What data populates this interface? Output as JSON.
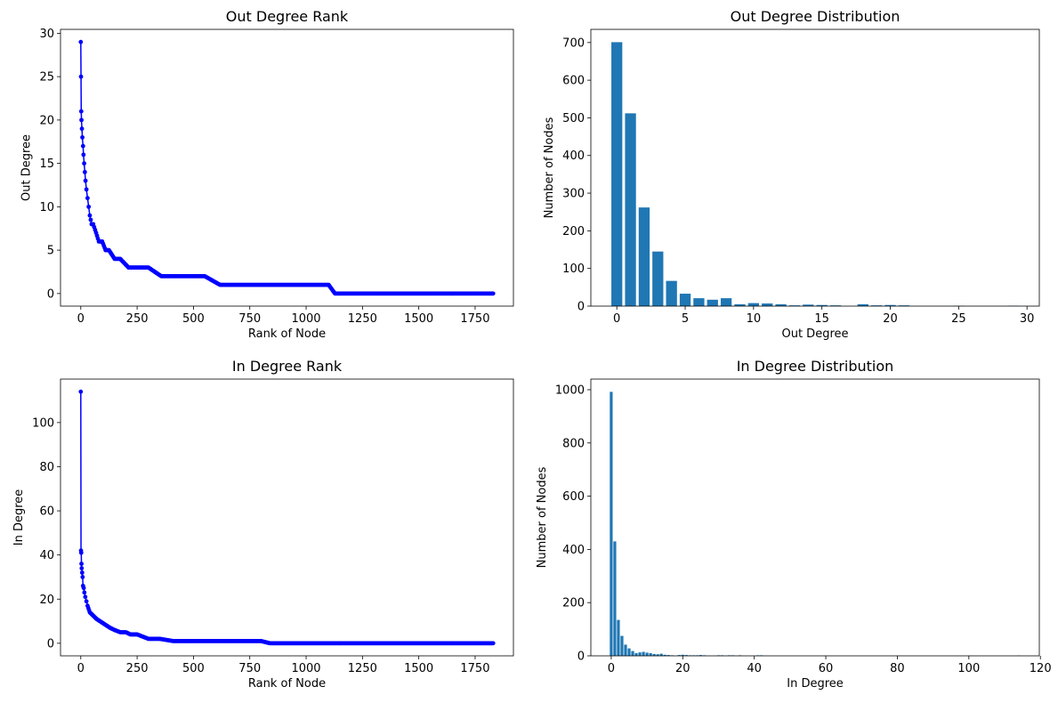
{
  "chart_data": [
    {
      "type": "line",
      "title": "Out Degree Rank",
      "xlabel": "Rank of Node",
      "ylabel": "Out Degree",
      "xlim": [
        -90,
        1920
      ],
      "ylim": [
        -1.45,
        30.45
      ],
      "xticks": [
        0,
        250,
        500,
        750,
        1000,
        1250,
        1500,
        1750
      ],
      "yticks": [
        0,
        5,
        10,
        15,
        20,
        25,
        30
      ],
      "color": "#0000ff",
      "marker": "circle",
      "series": [
        {
          "x": [
            0,
            1,
            2,
            3,
            5,
            7,
            10,
            12,
            15,
            18,
            21,
            25,
            30,
            35,
            40,
            48,
            55,
            68,
            80,
            95,
            110,
            125,
            150,
            175,
            212,
            250,
            300,
            357,
            400,
            450,
            500,
            550,
            618,
            700,
            800,
            900,
            1000,
            1100,
            1128,
            1200,
            1300,
            1400,
            1500,
            1600,
            1700,
            1800,
            1830
          ],
          "y": [
            29,
            25,
            21,
            20,
            19,
            18,
            17,
            16,
            15,
            14,
            13,
            12,
            11,
            10,
            9,
            8,
            8,
            7,
            6,
            6,
            5,
            5,
            4,
            4,
            3,
            3,
            3,
            2,
            2,
            2,
            2,
            2,
            1,
            1,
            1,
            1,
            1,
            1,
            0,
            0,
            0,
            0,
            0,
            0,
            0,
            0,
            0
          ]
        }
      ]
    },
    {
      "type": "bar",
      "title": "Out Degree Distribution",
      "xlabel": "Out Degree",
      "ylabel": "Number of Nodes",
      "xlim": [
        -1.9,
        30.9
      ],
      "ylim": [
        0,
        735
      ],
      "xticks": [
        0,
        5,
        10,
        15,
        20,
        25,
        30
      ],
      "yticks": [
        0,
        100,
        200,
        300,
        400,
        500,
        600,
        700
      ],
      "color": "#1f77b4",
      "x": [
        0,
        1,
        2,
        3,
        4,
        5,
        6,
        7,
        8,
        9,
        10,
        11,
        12,
        13,
        14,
        15,
        16,
        18,
        19,
        20,
        21,
        25,
        29
      ],
      "values": [
        701,
        512,
        262,
        145,
        67,
        33,
        21,
        17,
        21,
        5,
        8,
        7,
        5,
        2,
        4,
        3,
        2,
        5,
        2,
        3,
        2,
        1,
        1
      ]
    },
    {
      "type": "line",
      "title": "In Degree Rank",
      "xlabel": "Rank of Node",
      "ylabel": "In Degree",
      "xlim": [
        -90,
        1920
      ],
      "ylim": [
        -5.7,
        119.7
      ],
      "xticks": [
        0,
        250,
        500,
        750,
        1000,
        1250,
        1500,
        1750
      ],
      "yticks": [
        0,
        20,
        40,
        60,
        80,
        100
      ],
      "color": "#0000ff",
      "marker": "circle",
      "series": [
        {
          "x": [
            0,
            1,
            2,
            3,
            4,
            6,
            8,
            10,
            13,
            16,
            20,
            25,
            30,
            40,
            50,
            60,
            70,
            85,
            100,
            115,
            130,
            150,
            175,
            200,
            220,
            250,
            275,
            300,
            350,
            410,
            450,
            500,
            600,
            700,
            800,
            840,
            900,
            1000,
            1100,
            1200,
            1300,
            1400,
            1500,
            1600,
            1700,
            1800,
            1830
          ],
          "y": [
            114,
            42,
            41,
            36,
            34,
            32,
            30,
            26,
            25,
            23,
            21,
            19,
            17,
            14,
            13,
            12,
            11,
            10,
            9,
            8,
            7,
            6,
            5,
            5,
            4,
            4,
            3,
            2,
            2,
            1,
            1,
            1,
            1,
            1,
            1,
            0,
            0,
            0,
            0,
            0,
            0,
            0,
            0,
            0,
            0,
            0,
            0
          ]
        }
      ]
    },
    {
      "type": "bar",
      "title": "In Degree Distribution",
      "xlabel": "In Degree",
      "ylabel": "Number of Nodes",
      "xlim": [
        -5.7,
        119.7
      ],
      "ylim": [
        0,
        1040
      ],
      "xticks": [
        0,
        20,
        40,
        60,
        80,
        100,
        120
      ],
      "yticks": [
        0,
        200,
        400,
        600,
        800,
        1000
      ],
      "color": "#1f77b4",
      "x": [
        0,
        1,
        2,
        3,
        4,
        5,
        6,
        7,
        8,
        9,
        10,
        11,
        12,
        13,
        14,
        15,
        16,
        17,
        19,
        20,
        21,
        22,
        23,
        24,
        25,
        26,
        30,
        31,
        33,
        34,
        36,
        41,
        42,
        114
      ],
      "values": [
        992,
        430,
        135,
        75,
        42,
        28,
        18,
        10,
        13,
        15,
        12,
        10,
        7,
        6,
        8,
        4,
        3,
        2,
        3,
        4,
        3,
        2,
        2,
        2,
        3,
        2,
        2,
        2,
        2,
        2,
        2,
        2,
        2,
        1
      ]
    }
  ]
}
